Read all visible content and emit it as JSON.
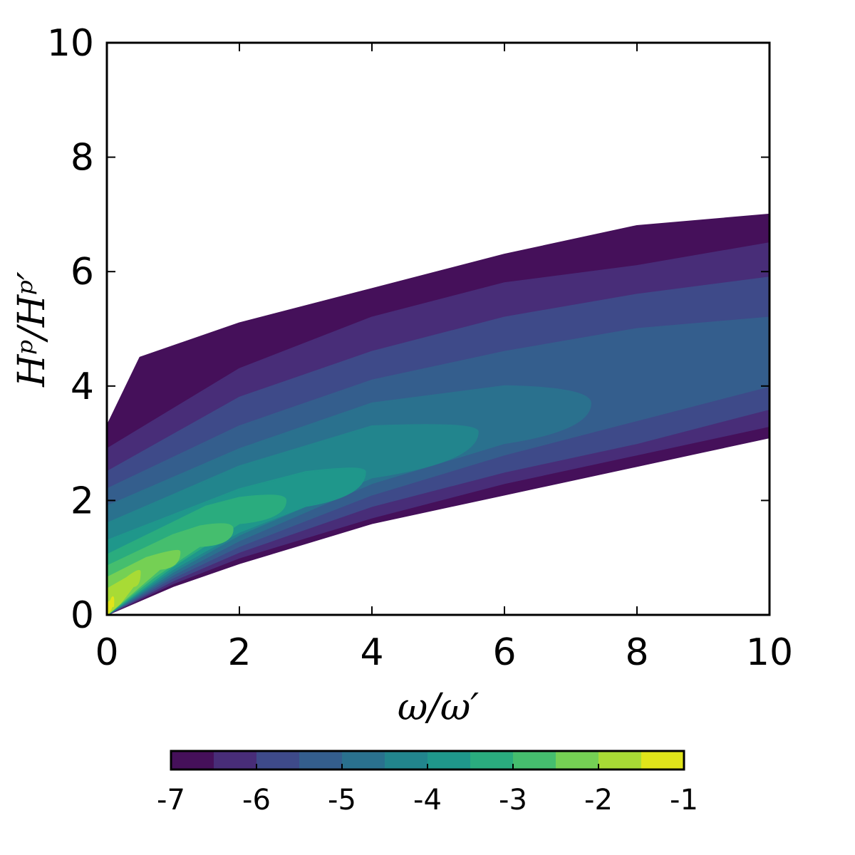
{
  "chart_data": {
    "type": "heatmap",
    "subtype": "filled-contour (log10 joint PDF)",
    "title": "",
    "xlabel": "ω/ω′",
    "ylabel": "Hᵖ/Hᵖ′",
    "xlim": [
      0,
      10
    ],
    "ylim": [
      0,
      10
    ],
    "x_ticks": [
      "0",
      "2",
      "4",
      "6",
      "8",
      "10"
    ],
    "y_ticks": [
      "0",
      "2",
      "4",
      "6",
      "8",
      "10"
    ],
    "grid": false,
    "colorbar": {
      "orientation": "horizontal",
      "placement": "bottom",
      "levels": [
        -7,
        -6.5,
        -6,
        -5.5,
        -5,
        -4.5,
        -4,
        -3.5,
        -3,
        -2.5,
        -2,
        -1.5,
        -1
      ],
      "ticks": [
        "-7",
        "-6",
        "-5",
        "-4",
        "-3",
        "-2",
        "-1"
      ],
      "colors": [
        "#45105a",
        "#482d78",
        "#3e4a89",
        "#345e8d",
        "#2a718e",
        "#22858d",
        "#1f978b",
        "#2aac7e",
        "#45be6e",
        "#75d054",
        "#a8db35",
        "#e0e41a"
      ]
    },
    "contour_regions": [
      {
        "level": -7.0,
        "ridge": [
          [
            0,
            1.4
          ],
          [
            2,
            2.9
          ],
          [
            4,
            3.8
          ],
          [
            6,
            4.5
          ],
          [
            8,
            4.9
          ],
          [
            10,
            5.2
          ]
        ],
        "upper": [
          [
            0,
            3.3
          ],
          [
            0.5,
            4.5
          ],
          [
            2,
            5.1
          ],
          [
            4,
            5.7
          ],
          [
            6,
            6.3
          ],
          [
            8,
            6.8
          ],
          [
            10,
            7.0
          ]
        ],
        "lower": [
          [
            0,
            0
          ],
          [
            1,
            0.5
          ],
          [
            2,
            0.9
          ],
          [
            4,
            1.6
          ],
          [
            6,
            2.1
          ],
          [
            8,
            2.6
          ],
          [
            10,
            3.1
          ]
        ]
      },
      {
        "level": -6.5,
        "ridge": [
          [
            0,
            1.4
          ],
          [
            2,
            2.9
          ],
          [
            4,
            3.8
          ],
          [
            6,
            4.5
          ],
          [
            8,
            4.9
          ],
          [
            10,
            5.2
          ]
        ],
        "upper": [
          [
            0,
            2.9
          ],
          [
            2,
            4.3
          ],
          [
            4,
            5.2
          ],
          [
            6,
            5.8
          ],
          [
            8,
            6.1
          ],
          [
            10,
            6.5
          ]
        ],
        "lower": [
          [
            0,
            0
          ],
          [
            1,
            0.55
          ],
          [
            2,
            1.0
          ],
          [
            4,
            1.7
          ],
          [
            6,
            2.3
          ],
          [
            8,
            2.8
          ],
          [
            10,
            3.3
          ]
        ]
      },
      {
        "level": -6.0,
        "ridge": [
          [
            0,
            1.4
          ],
          [
            2,
            2.9
          ],
          [
            4,
            3.8
          ],
          [
            6,
            4.5
          ],
          [
            8,
            4.9
          ],
          [
            10,
            5.2
          ]
        ],
        "upper": [
          [
            0,
            2.5
          ],
          [
            2,
            3.8
          ],
          [
            4,
            4.6
          ],
          [
            6,
            5.2
          ],
          [
            8,
            5.6
          ],
          [
            10,
            5.9
          ]
        ],
        "lower": [
          [
            0,
            0
          ],
          [
            1,
            0.6
          ],
          [
            2,
            1.1
          ],
          [
            4,
            1.9
          ],
          [
            6,
            2.5
          ],
          [
            8,
            3.0
          ],
          [
            10,
            3.6
          ]
        ]
      },
      {
        "level": -5.5,
        "ridge": [
          [
            0,
            1.3
          ],
          [
            2,
            2.6
          ],
          [
            4,
            3.4
          ],
          [
            6,
            4.2
          ],
          [
            8,
            4.7
          ],
          [
            10,
            5.0
          ]
        ],
        "upper": [
          [
            0,
            2.2
          ],
          [
            2,
            3.3
          ],
          [
            4,
            4.1
          ],
          [
            6,
            4.6
          ],
          [
            8,
            5.0
          ],
          [
            10,
            5.2
          ]
        ],
        "lower": [
          [
            0,
            0
          ],
          [
            1,
            0.65
          ],
          [
            2,
            1.2
          ],
          [
            4,
            2.1
          ],
          [
            6,
            2.8
          ],
          [
            8,
            3.4
          ],
          [
            10,
            4.0
          ]
        ]
      },
      {
        "level": -5.0,
        "ridge": [
          [
            0,
            1.2
          ],
          [
            2,
            2.3
          ],
          [
            4,
            3.0
          ],
          [
            6,
            3.5
          ],
          [
            7.3,
            3.7
          ]
        ],
        "upper": [
          [
            0,
            1.9
          ],
          [
            2,
            2.9
          ],
          [
            4,
            3.7
          ],
          [
            6,
            4.0
          ]
        ],
        "lower": [
          [
            0,
            0
          ],
          [
            1,
            0.7
          ],
          [
            2,
            1.3
          ],
          [
            4,
            2.3
          ],
          [
            6,
            3.0
          ]
        ]
      },
      {
        "level": -4.5,
        "ridge": [
          [
            0,
            1.1
          ],
          [
            2,
            2.0
          ],
          [
            4,
            2.8
          ],
          [
            5.6,
            3.2
          ]
        ],
        "upper": [
          [
            0,
            1.6
          ],
          [
            2,
            2.6
          ],
          [
            4,
            3.3
          ]
        ],
        "lower": [
          [
            0,
            0
          ],
          [
            1,
            0.75
          ],
          [
            2,
            1.4
          ],
          [
            4,
            2.4
          ]
        ]
      },
      {
        "level": -4.0,
        "ridge": [
          [
            0,
            0.9
          ],
          [
            2,
            1.8
          ],
          [
            3.9,
            2.5
          ]
        ],
        "upper": [
          [
            0,
            1.3
          ],
          [
            2,
            2.2
          ],
          [
            3,
            2.5
          ]
        ],
        "lower": [
          [
            0,
            0
          ],
          [
            1,
            0.8
          ],
          [
            2,
            1.45
          ],
          [
            3,
            1.9
          ]
        ]
      },
      {
        "level": -3.5,
        "ridge": [
          [
            0,
            0.75
          ],
          [
            1.5,
            1.5
          ],
          [
            2.7,
            2.0
          ]
        ],
        "upper": [
          [
            0,
            1.05
          ],
          [
            1.5,
            1.9
          ],
          [
            2,
            2.05
          ]
        ],
        "lower": [
          [
            0,
            0
          ],
          [
            1,
            0.85
          ],
          [
            2,
            1.6
          ]
        ]
      },
      {
        "level": -3.0,
        "ridge": [
          [
            0,
            0.6
          ],
          [
            1,
            1.1
          ],
          [
            1.9,
            1.5
          ]
        ],
        "upper": [
          [
            0,
            0.85
          ],
          [
            1,
            1.4
          ],
          [
            1.4,
            1.55
          ]
        ],
        "lower": [
          [
            0,
            0
          ],
          [
            0.7,
            0.65
          ],
          [
            1.4,
            1.2
          ]
        ]
      },
      {
        "level": -2.5,
        "ridge": [
          [
            0,
            0.45
          ],
          [
            0.6,
            0.8
          ],
          [
            1.1,
            1.1
          ]
        ],
        "upper": [
          [
            0,
            0.65
          ],
          [
            0.6,
            1.0
          ]
        ],
        "lower": [
          [
            0,
            0
          ],
          [
            0.4,
            0.4
          ],
          [
            0.8,
            0.8
          ]
        ]
      },
      {
        "level": -2.0,
        "ridge": [
          [
            0,
            0.3
          ],
          [
            0.2,
            0.45
          ],
          [
            0.5,
            0.75
          ]
        ],
        "upper": [
          [
            0,
            0.45
          ],
          [
            0.3,
            0.65
          ]
        ],
        "lower": [
          [
            0,
            0
          ],
          [
            0.2,
            0.2
          ],
          [
            0.4,
            0.5
          ]
        ]
      },
      {
        "level": -1.5,
        "ridge": [
          [
            0,
            0.1
          ],
          [
            0.05,
            0.15
          ],
          [
            0.1,
            0.25
          ]
        ],
        "upper": [
          [
            0,
            0.2
          ],
          [
            0.06,
            0.25
          ]
        ],
        "lower": [
          [
            0,
            0
          ],
          [
            0.05,
            0.08
          ],
          [
            0.09,
            0.18
          ]
        ]
      }
    ]
  }
}
